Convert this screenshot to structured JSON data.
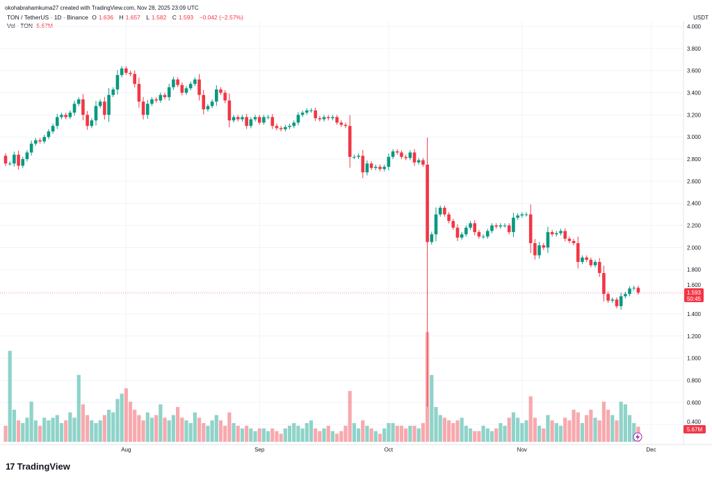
{
  "header": {
    "attribution": "okohabrahamkuma27 created with TradingView.com, Nov 28, 2025 23:09 UTC",
    "symbol": "TON / TetherUS · 1D · Binance",
    "open_label": "O",
    "open": "1.636",
    "high_label": "H",
    "high": "1.657",
    "low_label": "L",
    "low": "1.582",
    "close_label": "C",
    "close": "1.593",
    "change": "−0.042 (−2.57%)",
    "vol_label": "Vol · TON",
    "vol_value": "5.67M"
  },
  "price_axis": {
    "currency": "USDT"
  },
  "last_price": {
    "price": "1.593",
    "countdown": "50:45",
    "volume": "5.67M"
  },
  "footer": {
    "brand": "TradingView"
  },
  "colors": {
    "up": "#089981",
    "down": "#f23645",
    "up_volume": "#8fd3c9",
    "down_volume": "#f7a9ae",
    "grid": "#f0f3fa"
  },
  "chart_data": {
    "type": "candlestick",
    "ylim": [
      0,
      4.0
    ],
    "yticks": [
      "0.400",
      "0.600",
      "0.800",
      "1.000",
      "1.200",
      "1.400",
      "1.600",
      "1.800",
      "2.000",
      "2.200",
      "2.400",
      "2.600",
      "2.800",
      "3.000",
      "3.200",
      "3.400",
      "3.600",
      "3.800",
      "4.000"
    ],
    "ytick_values": [
      0.4,
      0.6,
      0.8,
      1.0,
      1.2,
      1.4,
      1.6,
      1.8,
      2.0,
      2.2,
      2.4,
      2.6,
      2.8,
      3.0,
      3.2,
      3.4,
      3.6,
      3.8,
      4.0
    ],
    "xticks": [
      {
        "label": "Aug",
        "date": "2025-08-01"
      },
      {
        "label": "Sep",
        "date": "2025-09-01"
      },
      {
        "label": "Oct",
        "date": "2025-10-01"
      },
      {
        "label": "Nov",
        "date": "2025-11-01"
      },
      {
        "label": "Dec",
        "date": "2025-12-01"
      }
    ],
    "first_date": "2025-07-04",
    "last_date": "2025-11-28",
    "grid": true,
    "closes": [
      2.76,
      2.76,
      2.84,
      2.74,
      2.8,
      2.86,
      2.94,
      2.97,
      2.96,
      3.0,
      3.05,
      3.1,
      3.18,
      3.2,
      3.18,
      3.22,
      3.3,
      3.34,
      3.2,
      3.1,
      3.15,
      3.28,
      3.32,
      3.2,
      3.38,
      3.43,
      3.56,
      3.62,
      3.58,
      3.57,
      3.48,
      3.32,
      3.2,
      3.3,
      3.34,
      3.33,
      3.38,
      3.36,
      3.45,
      3.52,
      3.47,
      3.4,
      3.44,
      3.48,
      3.52,
      3.38,
      3.25,
      3.28,
      3.32,
      3.43,
      3.4,
      3.33,
      3.15,
      3.18,
      3.16,
      3.18,
      3.1,
      3.16,
      3.18,
      3.13,
      3.18,
      3.18,
      3.1,
      3.08,
      3.07,
      3.09,
      3.1,
      3.13,
      3.2,
      3.22,
      3.24,
      3.24,
      3.17,
      3.16,
      3.18,
      3.17,
      3.18,
      3.13,
      3.11,
      3.1,
      2.82,
      2.82,
      2.83,
      2.68,
      2.76,
      2.72,
      2.73,
      2.71,
      2.73,
      2.82,
      2.87,
      2.86,
      2.82,
      2.81,
      2.86,
      2.77,
      2.79,
      2.75,
      2.05,
      2.12,
      2.3,
      2.36,
      2.3,
      2.24,
      2.18,
      2.09,
      2.12,
      2.18,
      2.22,
      2.14,
      2.1,
      2.1,
      2.15,
      2.2,
      2.19,
      2.2,
      2.2,
      2.14,
      2.27,
      2.29,
      2.3,
      2.3,
      2.04,
      1.93,
      2.02,
      2.0,
      2.14,
      2.12,
      2.13,
      2.15,
      2.08,
      2.06,
      2.04,
      1.87,
      1.91,
      1.89,
      1.84,
      1.87,
      1.77,
      1.58,
      1.52,
      1.53,
      1.47,
      1.56,
      1.58,
      1.63,
      1.636,
      1.593
    ],
    "first_open": 2.83,
    "special_lows": {
      "98": 0.56
    },
    "volume_unit": "M",
    "volumes": [
      6,
      34,
      12,
      8,
      7,
      9,
      15,
      8,
      6,
      9,
      8,
      9,
      10,
      7,
      8,
      11,
      9,
      25,
      14,
      10,
      8,
      7,
      8,
      10,
      12,
      11,
      16,
      18,
      20,
      15,
      12,
      10,
      8,
      11,
      9,
      10,
      14,
      9,
      8,
      10,
      13,
      9,
      8,
      7,
      11,
      9,
      7,
      6,
      8,
      10,
      8,
      6,
      11,
      7,
      6,
      5,
      6,
      5,
      4,
      5,
      5,
      4,
      5,
      4,
      3,
      5,
      6,
      7,
      6,
      5,
      7,
      8,
      5,
      4,
      5,
      6,
      4,
      3,
      4,
      6,
      19,
      7,
      5,
      8,
      6,
      5,
      4,
      3,
      5,
      7,
      7,
      6,
      6,
      5,
      6,
      6,
      5,
      7,
      41,
      25,
      13,
      10,
      9,
      8,
      7,
      8,
      9,
      6,
      5,
      4,
      4,
      6,
      5,
      4,
      5,
      7,
      6,
      9,
      11,
      9,
      7,
      8,
      17,
      9,
      6,
      5,
      10,
      8,
      7,
      6,
      9,
      8,
      12,
      11,
      7,
      10,
      12,
      9,
      8,
      15,
      12,
      10,
      8,
      15,
      14,
      10,
      7,
      5.67
    ]
  }
}
